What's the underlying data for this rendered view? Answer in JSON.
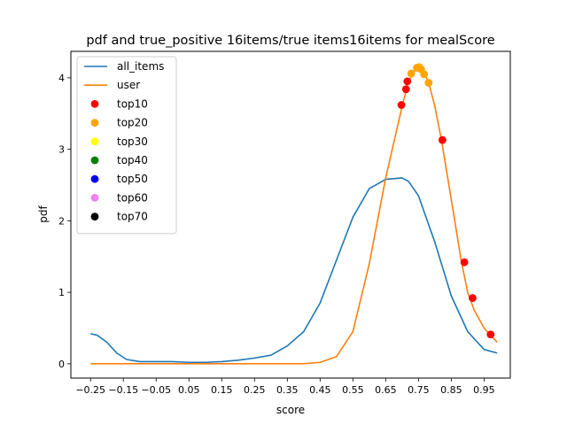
{
  "chart_data": {
    "type": "line",
    "title": "pdf and true_positive 16items/true items16items for mealScore",
    "xlabel": "score",
    "ylabel": "pdf",
    "xlim": [
      -0.31,
      1.03
    ],
    "ylim": [
      -0.2,
      4.37
    ],
    "xticks": [
      -0.25,
      -0.15,
      -0.05,
      0.05,
      0.15,
      0.25,
      0.35,
      0.45,
      0.55,
      0.65,
      0.75,
      0.85,
      0.95
    ],
    "xtick_labels": [
      "−0.25",
      "−0.15",
      "−0.05",
      "0.05",
      "0.15",
      "0.25",
      "0.35",
      "0.45",
      "0.55",
      "0.65",
      "0.75",
      "0.85",
      "0.95"
    ],
    "yticks": [
      0,
      1,
      2,
      3,
      4
    ],
    "ytick_labels": [
      "0",
      "1",
      "2",
      "3",
      "4"
    ],
    "grid": false,
    "legend_position": "top-left",
    "series": [
      {
        "name": "all_items",
        "kind": "line",
        "color": "#1f77b4",
        "x": [
          -0.25,
          -0.23,
          -0.2,
          -0.17,
          -0.14,
          -0.1,
          -0.05,
          0.0,
          0.05,
          0.1,
          0.15,
          0.2,
          0.25,
          0.3,
          0.35,
          0.4,
          0.45,
          0.5,
          0.55,
          0.6,
          0.65,
          0.7,
          0.72,
          0.75,
          0.8,
          0.85,
          0.9,
          0.95,
          0.99
        ],
        "y": [
          0.42,
          0.4,
          0.3,
          0.15,
          0.06,
          0.03,
          0.03,
          0.03,
          0.02,
          0.02,
          0.03,
          0.05,
          0.08,
          0.12,
          0.25,
          0.45,
          0.85,
          1.45,
          2.05,
          2.45,
          2.58,
          2.6,
          2.55,
          2.35,
          1.7,
          0.95,
          0.45,
          0.2,
          0.15
        ]
      },
      {
        "name": "user",
        "kind": "line",
        "color": "#ff7f0e",
        "x": [
          -0.25,
          0.0,
          0.3,
          0.4,
          0.45,
          0.5,
          0.55,
          0.6,
          0.65,
          0.7,
          0.72,
          0.74,
          0.75,
          0.76,
          0.78,
          0.8,
          0.82,
          0.85,
          0.88,
          0.9,
          0.92,
          0.95,
          0.97,
          0.99
        ],
        "y": [
          0.0,
          0.0,
          0.0,
          0.0,
          0.02,
          0.1,
          0.45,
          1.4,
          2.6,
          3.6,
          3.95,
          4.12,
          4.15,
          4.12,
          3.95,
          3.6,
          3.13,
          2.3,
          1.45,
          1.0,
          0.75,
          0.5,
          0.4,
          0.3
        ]
      }
    ],
    "scatter": [
      {
        "name": "top10",
        "color": "#ff0000",
        "points": [
          [
            0.698,
            3.62
          ],
          [
            0.712,
            3.84
          ],
          [
            0.716,
            3.95
          ],
          [
            0.823,
            3.13
          ],
          [
            0.89,
            1.42
          ],
          [
            0.915,
            0.92
          ],
          [
            0.97,
            0.41
          ]
        ]
      },
      {
        "name": "top20",
        "color": "#ffa500",
        "points": [
          [
            0.728,
            4.06
          ],
          [
            0.745,
            4.14
          ],
          [
            0.752,
            4.15
          ],
          [
            0.758,
            4.12
          ],
          [
            0.767,
            4.05
          ],
          [
            0.781,
            3.93
          ]
        ]
      },
      {
        "name": "top30",
        "color": "#ffff00",
        "points": []
      },
      {
        "name": "top40",
        "color": "#008000",
        "points": []
      },
      {
        "name": "top50",
        "color": "#0000ff",
        "points": []
      },
      {
        "name": "top60",
        "color": "#ee82ee",
        "points": []
      },
      {
        "name": "top70",
        "color": "#000000",
        "points": []
      }
    ]
  }
}
